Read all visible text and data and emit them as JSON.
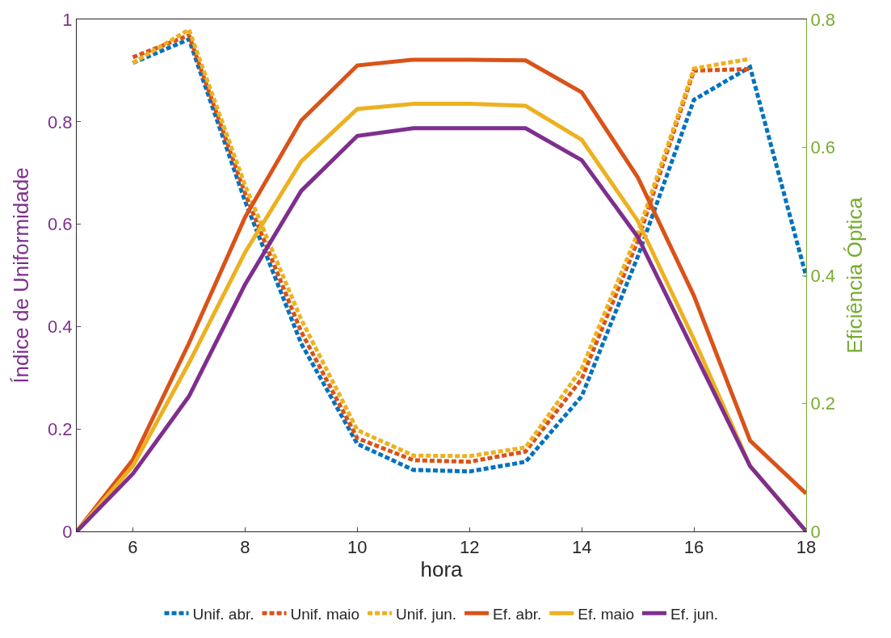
{
  "chart_data": {
    "type": "line",
    "xlabel": "hora",
    "ylabel": "Índice de Uniformidade",
    "y2label": "Eficiência Óptica",
    "x": [
      5,
      6,
      7,
      8,
      9,
      10,
      11,
      12,
      13,
      14,
      15,
      16,
      17,
      18
    ],
    "xlim": [
      5,
      18
    ],
    "xticks": [
      6,
      8,
      10,
      12,
      14,
      16,
      18
    ],
    "ylim": [
      0,
      1
    ],
    "yticks": [
      0,
      0.2,
      0.4,
      0.6,
      0.8,
      1
    ],
    "y2lim": [
      0,
      0.8
    ],
    "y2ticks": [
      0,
      0.2,
      0.4,
      0.6,
      0.8
    ],
    "legend": "bottom",
    "marker": "none",
    "series": [
      {
        "name": "Unif. abr.",
        "color": "#0072bd",
        "line_style": "dashed",
        "values": [
          null,
          0.915,
          0.961,
          0.645,
          0.367,
          0.171,
          0.12,
          0.117,
          0.136,
          0.264,
          0.537,
          0.843,
          0.907,
          0.498
        ]
      },
      {
        "name": "Unif. maio",
        "color": "#d95319",
        "line_style": "dashed",
        "values": [
          null,
          0.926,
          0.969,
          0.66,
          0.39,
          0.182,
          0.139,
          0.136,
          0.156,
          0.298,
          0.568,
          0.9,
          0.903,
          null
        ]
      },
      {
        "name": "Unif. jun.",
        "color": "#edb120",
        "line_style": "dashed",
        "values": [
          null,
          0.915,
          0.98,
          0.676,
          0.414,
          0.198,
          0.148,
          0.147,
          0.164,
          0.318,
          0.583,
          0.904,
          0.923,
          null
        ]
      },
      {
        "name": "Ef. abr.",
        "color": "#d95319",
        "line_style": "solid",
        "axis": "y2",
        "values": [
          0,
          0.112,
          0.294,
          0.491,
          0.642,
          0.728,
          0.737,
          0.737,
          0.736,
          0.686,
          0.553,
          0.368,
          0.142,
          0.059
        ]
      },
      {
        "name": "Ef. maio",
        "color": "#edb120",
        "line_style": "solid",
        "axis": "y2",
        "values": [
          0,
          0.102,
          0.263,
          0.436,
          0.578,
          0.66,
          0.668,
          0.668,
          0.665,
          0.612,
          0.485,
          0.3,
          0.102,
          0
        ]
      },
      {
        "name": "Ef. jun.",
        "color": "#7e2f8e",
        "line_style": "solid",
        "axis": "y2",
        "values": [
          0,
          0.09,
          0.211,
          0.386,
          0.532,
          0.618,
          0.63,
          0.63,
          0.63,
          0.58,
          0.46,
          0.281,
          0.102,
          0
        ]
      }
    ]
  }
}
